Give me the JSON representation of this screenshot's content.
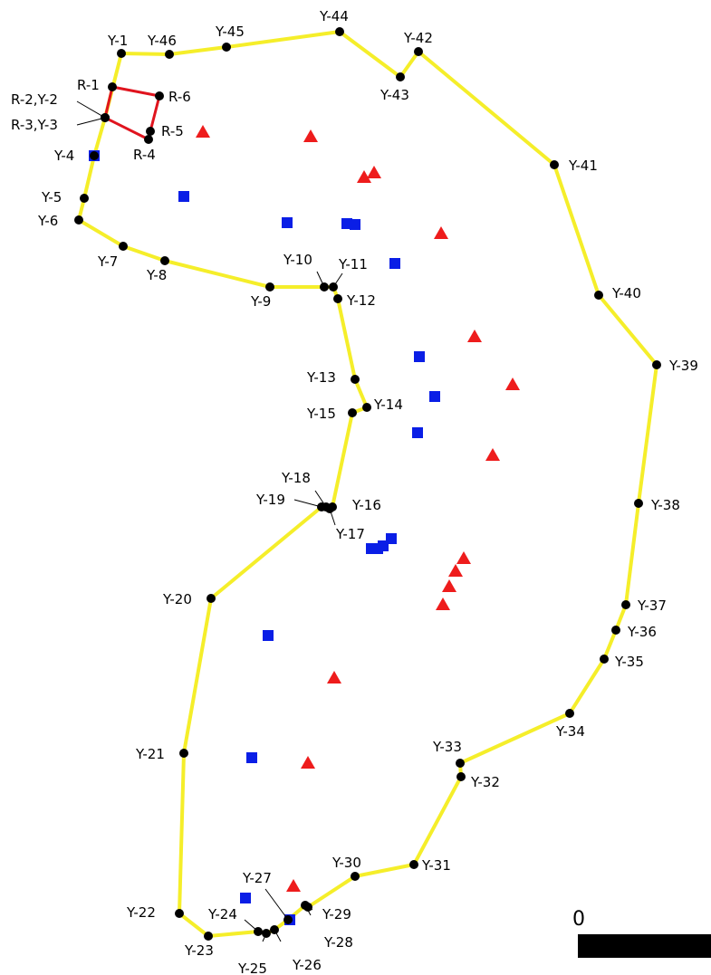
{
  "colors": {
    "yellow_boundary": "#f5ee2a",
    "red_boundary": "#e0141e",
    "point": "#000000",
    "triangle": "#ee1c1c",
    "square": "#0a1ee6",
    "scale_bar": "#000000"
  },
  "scale_bar": {
    "label": "0"
  },
  "yellow_points": [
    "Y-1",
    "Y-46",
    "Y-45",
    "Y-44",
    "Y-43",
    "Y-42",
    "Y-41",
    "Y-40",
    "Y-39",
    "Y-38",
    "Y-37",
    "Y-36",
    "Y-35",
    "Y-34",
    "Y-33",
    "Y-32",
    "Y-31",
    "Y-30",
    "Y-29",
    "Y-28",
    "Y-27",
    "Y-26",
    "Y-25",
    "Y-24",
    "Y-23",
    "Y-22",
    "Y-21",
    "Y-20",
    "Y-19",
    "Y-18",
    "Y-17",
    "Y-16",
    "Y-15",
    "Y-14",
    "Y-13",
    "Y-12",
    "Y-11",
    "Y-10",
    "Y-9",
    "Y-8",
    "Y-7",
    "Y-6",
    "Y-5",
    "Y-4",
    "R-3,Y-3",
    "R-2,Y-2"
  ],
  "red_points": [
    "R-1",
    "R-6",
    "R-5",
    "R-4",
    "R-3,Y-3",
    "R-2,Y-2"
  ]
}
